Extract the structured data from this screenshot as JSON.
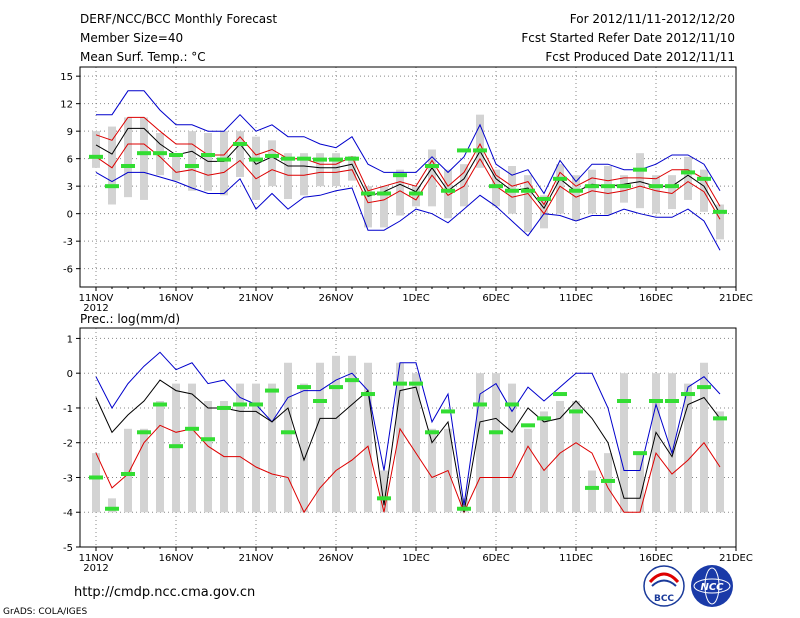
{
  "header": {
    "left_line1": "DERF/NCC/BCC Monthly Forecast",
    "left_line2": "Member Size=40",
    "left_line3": "Mean Surf. Temp.: °C",
    "right_line1": "For 2012/11/11-2012/12/20",
    "right_line2": "Fcst Started Refer Date 2012/11/10",
    "right_line3": "Fcst Produced Date 2012/11/11"
  },
  "chart2_title": "Prec.: log(mm/d)",
  "footer": {
    "url": "http://cmdp.ncc.cma.gov.cn",
    "credit": "GrADS: COLA/IGES",
    "logo1_text": "BCC",
    "logo2_text": "NCC"
  },
  "colors": {
    "spread_max_min": "#0000cc",
    "percentile": "#dd0000",
    "median": "#000000",
    "observed": "#33dd33",
    "bars": "#d3d3d3"
  },
  "chart_data": [
    {
      "type": "line",
      "title": "Mean Surf. Temp.: °C",
      "ylim": [
        -8,
        16
      ],
      "yticks": [
        -6,
        -3,
        0,
        3,
        6,
        9,
        12,
        15
      ],
      "xlabel_ticks": [
        "11NOV",
        "16NOV",
        "21NOV",
        "26NOV",
        "1DEC",
        "6DEC",
        "11DEC",
        "16DEC",
        "21DEC"
      ],
      "year_label": "2012",
      "days": 40,
      "series": [
        {
          "name": "max",
          "values": [
            10.8,
            10.8,
            13.4,
            13.4,
            11.3,
            9.7,
            9.7,
            9.0,
            9.0,
            10.8,
            9.0,
            9.7,
            8.4,
            8.4,
            7.6,
            7.2,
            8.4,
            5.4,
            4.5,
            4.5,
            4.5,
            6.2,
            4.5,
            6.2,
            9.7,
            5.4,
            4.2,
            4.8,
            2.2,
            5.8,
            3.5,
            5.4,
            5.4,
            4.8,
            4.8,
            5.4,
            6.4,
            6.4,
            5.4,
            2.5
          ]
        },
        {
          "name": "p80",
          "values": [
            8.6,
            8.0,
            10.5,
            10.5,
            9.0,
            7.6,
            7.6,
            6.4,
            6.4,
            8.4,
            6.4,
            7.0,
            6.0,
            6.0,
            5.4,
            5.4,
            6.2,
            2.5,
            3.0,
            3.5,
            3.0,
            5.8,
            3.0,
            4.5,
            7.6,
            4.2,
            3.0,
            3.5,
            1.0,
            4.5,
            3.0,
            3.9,
            3.6,
            3.9,
            3.9,
            3.8,
            4.8,
            4.8,
            3.8,
            0.8
          ]
        },
        {
          "name": "median",
          "values": [
            7.5,
            6.5,
            9.3,
            9.3,
            7.6,
            6.4,
            6.8,
            5.7,
            5.7,
            7.6,
            5.4,
            6.2,
            5.2,
            5.2,
            5.0,
            5.0,
            5.4,
            1.9,
            2.4,
            3.2,
            2.4,
            5.0,
            2.5,
            3.8,
            6.8,
            3.8,
            2.5,
            2.8,
            0.6,
            3.8,
            2.4,
            3.2,
            3.0,
            3.2,
            3.5,
            3.0,
            3.0,
            4.2,
            3.0,
            0.0
          ]
        },
        {
          "name": "p20",
          "values": [
            6.2,
            5.0,
            7.6,
            7.6,
            6.2,
            4.5,
            4.8,
            4.2,
            4.5,
            5.8,
            3.8,
            4.8,
            4.2,
            4.2,
            4.5,
            4.5,
            4.8,
            1.2,
            1.5,
            2.5,
            1.5,
            4.2,
            2.0,
            3.0,
            6.0,
            3.0,
            1.8,
            2.2,
            0.0,
            3.0,
            1.8,
            2.5,
            2.2,
            2.5,
            3.0,
            2.5,
            2.2,
            3.5,
            2.4,
            -0.6
          ]
        },
        {
          "name": "min",
          "values": [
            4.5,
            3.5,
            4.5,
            4.5,
            4.0,
            3.5,
            2.8,
            2.2,
            2.2,
            3.8,
            0.5,
            2.2,
            0.5,
            1.8,
            2.0,
            2.5,
            2.8,
            -1.8,
            -1.8,
            -0.8,
            0.5,
            0.0,
            -1.0,
            0.5,
            2.0,
            0.8,
            -0.8,
            -2.4,
            0.0,
            -0.2,
            -0.8,
            -0.2,
            -0.2,
            0.5,
            0.0,
            -0.4,
            -0.4,
            0.5,
            -0.8,
            -4.0
          ]
        },
        {
          "name": "observed",
          "values": [
            6.2,
            3.0,
            5.2,
            6.6,
            6.6,
            6.4,
            5.2,
            6.4,
            5.9,
            7.6,
            5.9,
            6.3,
            6.0,
            6.0,
            5.9,
            5.9,
            6.0,
            2.2,
            2.2,
            4.2,
            2.2,
            5.2,
            2.5,
            6.9,
            6.9,
            3.0,
            2.5,
            2.5,
            1.6,
            3.8,
            2.5,
            3.0,
            3.0,
            3.0,
            4.8,
            3.0,
            3.0,
            4.5,
            3.8,
            0.2
          ]
        },
        {
          "name": "bar_low",
          "values": [
            5.0,
            1.0,
            1.8,
            1.5,
            4.2,
            3.6,
            2.5,
            2.5,
            2.0,
            4.0,
            1.5,
            3.0,
            1.6,
            2.0,
            3.0,
            3.0,
            3.6,
            -1.5,
            -1.5,
            -0.2,
            0.8,
            0.8,
            -0.5,
            0.8,
            5.0,
            0.8,
            0.0,
            -2.0,
            -1.6,
            0.0,
            -0.8,
            0.0,
            -0.1,
            1.2,
            0.6,
            0.0,
            0.5,
            1.5,
            0.2,
            -2.8
          ]
        },
        {
          "name": "bar_high",
          "values": [
            9.0,
            9.5,
            10.5,
            10.5,
            8.8,
            6.6,
            9.0,
            8.8,
            9.0,
            9.0,
            8.4,
            8.0,
            6.6,
            6.6,
            6.6,
            6.6,
            6.3,
            3.0,
            3.0,
            4.8,
            3.0,
            7.0,
            4.8,
            5.4,
            10.8,
            4.8,
            5.2,
            4.2,
            2.0,
            5.4,
            4.2,
            4.8,
            5.2,
            4.2,
            6.6,
            4.2,
            4.2,
            6.2,
            4.8,
            1.0
          ]
        }
      ]
    },
    {
      "type": "line",
      "title": "Prec.: log(mm/d)",
      "ylim": [
        -5,
        1.3
      ],
      "yticks": [
        -5,
        -4,
        -3,
        -2,
        -1,
        0,
        1
      ],
      "xlabel_ticks": [
        "11NOV",
        "16NOV",
        "21NOV",
        "26NOV",
        "1DEC",
        "6DEC",
        "11DEC",
        "16DEC",
        "21DEC"
      ],
      "year_label": "2012",
      "days": 40,
      "series": [
        {
          "name": "max",
          "values": [
            -0.1,
            -1.0,
            -0.3,
            0.2,
            0.6,
            0.1,
            0.3,
            -0.3,
            -0.2,
            -0.7,
            -0.9,
            -1.4,
            -0.7,
            -0.5,
            -0.5,
            -0.2,
            0.0,
            -0.5,
            -2.8,
            0.3,
            0.3,
            -1.4,
            -0.6,
            -3.8,
            -0.6,
            -0.3,
            -1.1,
            -0.4,
            -0.8,
            -0.4,
            0.0,
            0.0,
            -1.0,
            -2.8,
            -2.8,
            -0.9,
            -2.3,
            -0.4,
            -0.1,
            -0.6
          ]
        },
        {
          "name": "median",
          "values": [
            -0.7,
            -1.7,
            -1.2,
            -0.8,
            -0.2,
            -0.5,
            -0.6,
            -1.0,
            -1.0,
            -1.1,
            -1.1,
            -1.4,
            -1.0,
            -2.5,
            -1.3,
            -1.3,
            -0.9,
            -0.5,
            -3.8,
            -0.5,
            -0.4,
            -2.0,
            -1.4,
            -4.0,
            -1.4,
            -1.3,
            -1.7,
            -1.0,
            -1.4,
            -1.3,
            -0.8,
            -1.3,
            -2.0,
            -3.6,
            -3.6,
            -1.7,
            -2.4,
            -0.9,
            -0.7,
            -1.3
          ]
        },
        {
          "name": "p20",
          "values": [
            -2.3,
            -3.3,
            -2.9,
            -2.0,
            -1.5,
            -1.7,
            -1.6,
            -2.1,
            -2.4,
            -2.4,
            -2.7,
            -2.9,
            -3.0,
            -4.0,
            -3.3,
            -2.8,
            -2.5,
            -2.1,
            -4.0,
            -1.6,
            -2.3,
            -3.0,
            -2.8,
            -4.0,
            -3.0,
            -3.0,
            -3.0,
            -2.1,
            -2.8,
            -2.3,
            -2.0,
            -2.3,
            -3.3,
            -4.0,
            -4.0,
            -2.3,
            -2.9,
            -2.5,
            -2.0,
            -2.7
          ]
        },
        {
          "name": "observed",
          "values": [
            -3.0,
            -3.9,
            -2.9,
            -1.7,
            -0.9,
            -2.1,
            -1.6,
            -1.9,
            -1.0,
            -0.9,
            -0.9,
            -0.5,
            -1.7,
            -0.4,
            -0.8,
            -0.4,
            -0.2,
            -0.6,
            -3.6,
            -0.3,
            -0.3,
            -1.7,
            -1.1,
            -3.9,
            -0.9,
            -1.7,
            -0.9,
            -1.5,
            -1.3,
            -0.6,
            -1.1,
            -3.3,
            -3.1,
            -0.8,
            -2.3,
            -0.8,
            -0.8,
            -0.6,
            -0.4,
            -1.3
          ]
        },
        {
          "name": "bar_low",
          "values": [
            -4.0,
            -4.0,
            -4.0,
            -4.0,
            -4.0,
            -4.0,
            -4.0,
            -4.0,
            -4.0,
            -4.0,
            -4.0,
            -4.0,
            -4.0,
            -4.0,
            -4.0,
            -4.0,
            -4.0,
            -4.0,
            -4.0,
            -4.0,
            -4.0,
            -4.0,
            -4.0,
            -4.0,
            -4.0,
            -4.0,
            -4.0,
            -4.0,
            -4.0,
            -4.0,
            -4.0,
            -4.0,
            -4.0,
            -4.0,
            -4.0,
            -4.0,
            -4.0,
            -4.0,
            -4.0,
            -4.0
          ]
        },
        {
          "name": "bar_high",
          "values": [
            -2.3,
            -3.6,
            -1.6,
            -1.6,
            -0.8,
            -0.3,
            -0.3,
            -0.8,
            -0.8,
            -0.3,
            -0.3,
            -0.3,
            0.3,
            -0.3,
            0.3,
            0.5,
            0.5,
            0.3,
            -2.8,
            0.3,
            0.0,
            -1.6,
            -1.6,
            -3.6,
            0.0,
            0.0,
            -0.3,
            -1.6,
            -1.1,
            -0.8,
            -0.8,
            -2.8,
            -2.3,
            0.0,
            -2.3,
            0.0,
            0.0,
            -0.3,
            0.3,
            -1.1
          ]
        }
      ]
    }
  ]
}
